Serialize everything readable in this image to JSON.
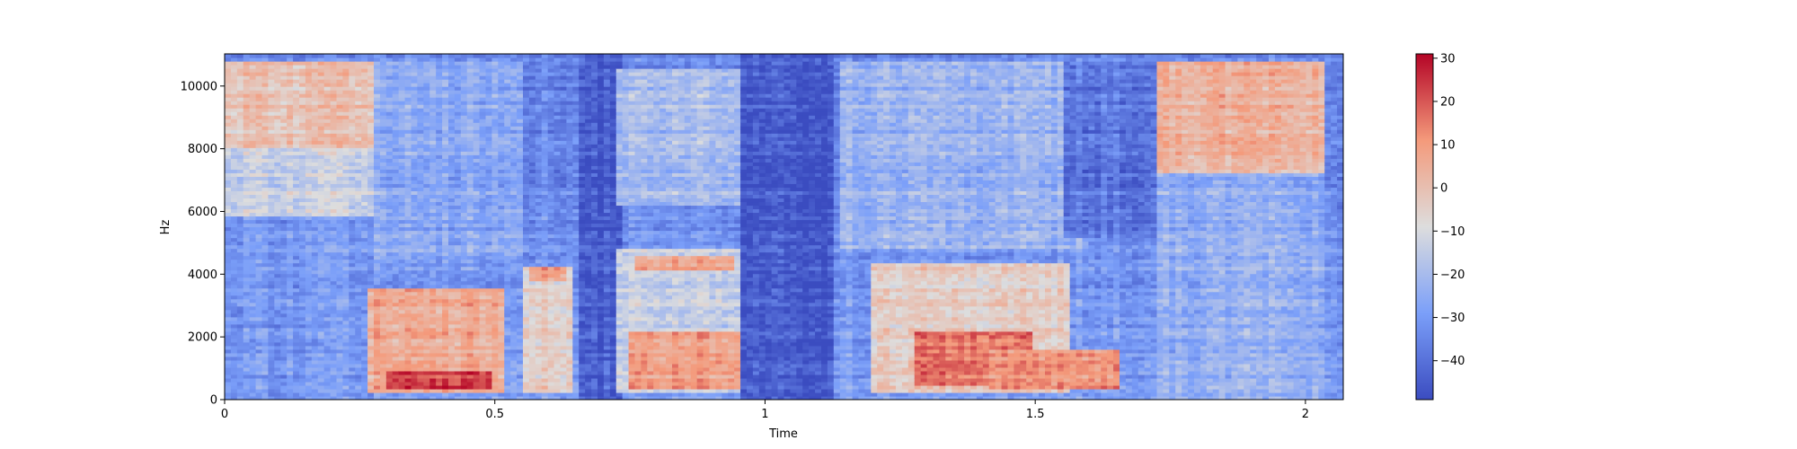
{
  "chart_data": {
    "type": "heatmap",
    "title": "",
    "xlabel": "Time",
    "ylabel": "Hz",
    "xlim": [
      0,
      2.07
    ],
    "ylim": [
      0,
      11025
    ],
    "x_ticks": [
      0,
      0.5,
      1,
      1.5,
      2
    ],
    "x_tick_labels": [
      "0",
      "0.5",
      "1",
      "1.5",
      "2"
    ],
    "y_ticks": [
      0,
      2000,
      4000,
      6000,
      8000,
      10000
    ],
    "y_tick_labels": [
      "0",
      "2000",
      "4000",
      "6000",
      "8000",
      "10000"
    ],
    "colormap": "coolwarm",
    "colorbar": {
      "range": [
        -49,
        31
      ],
      "ticks": [
        30,
        20,
        10,
        0,
        -10,
        -20,
        -30,
        -40
      ],
      "tick_labels": [
        "30",
        "20",
        "10",
        "0",
        "−10",
        "−20",
        "−30",
        "−40"
      ],
      "color_low": "#3b4cc0",
      "color_mid": "#dddddd",
      "color_high": "#b40426"
    },
    "regions": [
      {
        "t0": 0.0,
        "t1": 0.28,
        "f0": 8000,
        "f1": 10800,
        "db": 0
      },
      {
        "t0": 0.0,
        "t1": 0.28,
        "f0": 5800,
        "f1": 8000,
        "db": -12
      },
      {
        "t0": 0.0,
        "t1": 0.28,
        "f0": 0,
        "f1": 5800,
        "db": -30
      },
      {
        "t0": 0.26,
        "t1": 0.52,
        "f0": 200,
        "f1": 3600,
        "db": 5
      },
      {
        "t0": 0.3,
        "t1": 0.5,
        "f0": 300,
        "f1": 900,
        "db": 22
      },
      {
        "t0": 0.28,
        "t1": 0.55,
        "f0": 4500,
        "f1": 10800,
        "db": -26
      },
      {
        "t0": 0.55,
        "t1": 0.64,
        "f0": 200,
        "f1": 4300,
        "db": -5
      },
      {
        "t0": 0.56,
        "t1": 0.63,
        "f0": 3800,
        "f1": 4300,
        "db": 8
      },
      {
        "t0": 0.65,
        "t1": 0.74,
        "f0": 0,
        "f1": 11025,
        "db": -45
      },
      {
        "t0": 0.72,
        "t1": 0.96,
        "f0": 6200,
        "f1": 10600,
        "db": -20
      },
      {
        "t0": 0.72,
        "t1": 0.96,
        "f0": 200,
        "f1": 4800,
        "db": -14
      },
      {
        "t0": 0.76,
        "t1": 0.94,
        "f0": 4100,
        "f1": 4600,
        "db": 6
      },
      {
        "t0": 0.75,
        "t1": 0.95,
        "f0": 300,
        "f1": 2200,
        "db": 8
      },
      {
        "t0": 0.96,
        "t1": 1.13,
        "f0": 0,
        "f1": 11025,
        "db": -46
      },
      {
        "t0": 1.14,
        "t1": 1.6,
        "f0": 4800,
        "f1": 10800,
        "db": -22
      },
      {
        "t0": 1.2,
        "t1": 1.56,
        "f0": 200,
        "f1": 4400,
        "db": -4
      },
      {
        "t0": 1.28,
        "t1": 1.5,
        "f0": 500,
        "f1": 2200,
        "db": 16
      },
      {
        "t0": 1.42,
        "t1": 1.66,
        "f0": 300,
        "f1": 1600,
        "db": 10
      },
      {
        "t0": 1.55,
        "t1": 1.72,
        "f0": 5200,
        "f1": 10800,
        "db": -38
      },
      {
        "t0": 1.72,
        "t1": 2.04,
        "f0": 7200,
        "f1": 10800,
        "db": 4
      },
      {
        "t0": 1.72,
        "t1": 2.04,
        "f0": 0,
        "f1": 7200,
        "db": -24
      }
    ]
  }
}
